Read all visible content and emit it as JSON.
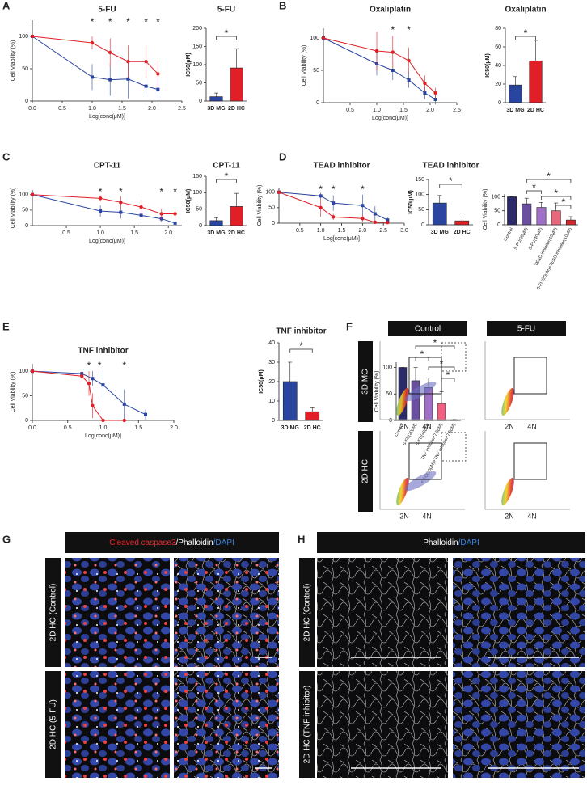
{
  "panel_labels": [
    "A",
    "B",
    "C",
    "D",
    "E",
    "F",
    "G",
    "H"
  ],
  "chart_data": [
    {
      "type": "line",
      "title": "5-FU",
      "xlabel": "Log[conc(μM)]",
      "ylabel": "Cell Viability (%)",
      "xlim": [
        0,
        2.5
      ],
      "ylim": [
        0,
        125
      ],
      "xticks": [
        {
          "value": 0,
          "label": "0.0"
        },
        0.5,
        {
          "value": 1,
          "label": "1.0"
        },
        1.5,
        {
          "value": 2,
          "label": "2.0"
        },
        2.5
      ],
      "yticks": [
        0,
        50,
        100
      ],
      "series": [
        {
          "color": "#2a45a0",
          "x": [
            0,
            1.0,
            1.3,
            1.6,
            1.9,
            2.1
          ],
          "values": [
            100,
            37,
            33,
            34,
            23,
            18
          ],
          "errors": [
            0,
            20,
            25,
            30,
            15,
            18
          ]
        },
        {
          "color": "#e02026",
          "x": [
            0,
            1.0,
            1.3,
            1.6,
            1.9,
            2.1
          ],
          "values": [
            100,
            90,
            75,
            61,
            61,
            42
          ],
          "errors": [
            0,
            10,
            22,
            25,
            25,
            20
          ]
        }
      ],
      "annotations": [
        {
          "text": "*",
          "x": 1.0
        },
        {
          "text": "*",
          "x": 1.3
        },
        {
          "text": "*",
          "x": 1.6
        },
        {
          "text": "*",
          "x": 1.9
        },
        {
          "text": "*",
          "x": 2.1
        }
      ]
    },
    {
      "type": "bar",
      "title": "5-FU",
      "ylabel": "IC50(μM)",
      "categories": [
        "3D MG",
        "2D HC"
      ],
      "values": [
        12,
        91
      ],
      "errors": [
        10,
        53
      ],
      "colors": [
        "#2a45a0",
        "#e02026"
      ],
      "ylim": [
        0,
        200
      ],
      "yticks": [
        0,
        50,
        100,
        150,
        200
      ],
      "annotations": [
        "*"
      ]
    },
    {
      "type": "line",
      "title": "Oxaliplatin",
      "xlabel": "Log[conc(μM)]",
      "ylabel": "Cell Viability (%)",
      "xlim": [
        0,
        2.5
      ],
      "ylim": [
        0,
        115
      ],
      "xticks": [
        0.5,
        {
          "value": 1,
          "label": "1.0"
        },
        1.5,
        {
          "value": 2,
          "label": "2.0"
        },
        2.5
      ],
      "yticks": [
        0,
        50,
        100
      ],
      "series": [
        {
          "color": "#2a45a0",
          "x": [
            0,
            1.0,
            1.3,
            1.6,
            1.9,
            2.1
          ],
          "values": [
            100,
            60,
            50,
            35,
            15,
            5
          ],
          "errors": [
            0,
            18,
            15,
            12,
            10,
            8
          ]
        },
        {
          "color": "#e02026",
          "x": [
            0,
            1.0,
            1.3,
            1.6,
            1.9,
            2.1
          ],
          "values": [
            100,
            80,
            78,
            65,
            30,
            15
          ],
          "errors": [
            0,
            30,
            25,
            20,
            12,
            8
          ]
        }
      ],
      "annotations": [
        {
          "text": "*",
          "x": 1.3
        },
        {
          "text": "*",
          "x": 1.6
        }
      ]
    },
    {
      "type": "bar",
      "title": "Oxaliplatin",
      "ylabel": "IC50(μM)",
      "categories": [
        "3D MG",
        "2D HC"
      ],
      "values": [
        19,
        45
      ],
      "errors": [
        9,
        22
      ],
      "colors": [
        "#2a45a0",
        "#e02026"
      ],
      "ylim": [
        0,
        80
      ],
      "yticks": [
        0,
        20,
        40,
        60,
        80
      ],
      "annotations": [
        "*"
      ]
    },
    {
      "type": "line",
      "title": "CPT-11",
      "xlabel": "Log[conc(μM)]",
      "ylabel": "Cell Viability (%)",
      "xlim": [
        0,
        2.2
      ],
      "ylim": [
        0,
        115
      ],
      "xticks": [
        0.5,
        {
          "value": 1,
          "label": "1.0"
        },
        1.5,
        {
          "value": 2,
          "label": "2.0"
        }
      ],
      "yticks": [
        0,
        50,
        100
      ],
      "series": [
        {
          "color": "#2a45a0",
          "x": [
            0,
            1.0,
            1.3,
            1.6,
            1.9,
            2.1
          ],
          "values": [
            100,
            47,
            43,
            33,
            22,
            8
          ],
          "errors": [
            0,
            18,
            20,
            18,
            10,
            5
          ]
        },
        {
          "color": "#e02026",
          "x": [
            0,
            1.0,
            1.3,
            1.6,
            1.9,
            2.1
          ],
          "values": [
            100,
            88,
            75,
            60,
            38,
            38
          ],
          "errors": [
            0,
            10,
            20,
            22,
            18,
            15
          ]
        }
      ],
      "annotations": [
        {
          "text": "*",
          "x": 1.0
        },
        {
          "text": "*",
          "x": 1.3
        },
        {
          "text": "*",
          "x": 1.9
        },
        {
          "text": "*",
          "x": 2.1
        }
      ]
    },
    {
      "type": "bar",
      "title": "CPT-11",
      "ylabel": "IC50(μM)",
      "categories": [
        "3D MG",
        "2D HC"
      ],
      "values": [
        15,
        58
      ],
      "errors": [
        9,
        40
      ],
      "colors": [
        "#2a45a0",
        "#e02026"
      ],
      "ylim": [
        0,
        150
      ],
      "yticks": [
        0,
        50,
        100,
        150
      ],
      "annotations": [
        "*"
      ]
    },
    {
      "type": "line",
      "title": "TEAD inhibitor",
      "xlabel": "Log[conc(μM)]",
      "ylabel": "Cell Viability (%)",
      "xlim": [
        0,
        3.0
      ],
      "ylim": [
        0,
        115
      ],
      "xticks": [
        0.5,
        {
          "value": 1,
          "label": "1.0"
        },
        1.5,
        {
          "value": 2,
          "label": "2.0"
        },
        2.5,
        {
          "value": 3,
          "label": "3.0"
        }
      ],
      "yticks": [
        0,
        50,
        100
      ],
      "series": [
        {
          "color": "#2a45a0",
          "x": [
            0,
            1.0,
            1.3,
            2.0,
            2.3,
            2.6
          ],
          "values": [
            100,
            88,
            65,
            57,
            30,
            10
          ],
          "errors": [
            0,
            10,
            25,
            35,
            25,
            8
          ]
        },
        {
          "color": "#e02026",
          "x": [
            0,
            1.0,
            1.3,
            2.0,
            2.3,
            2.6
          ],
          "values": [
            100,
            50,
            20,
            15,
            3,
            2
          ],
          "errors": [
            0,
            30,
            10,
            10,
            3,
            2
          ]
        }
      ],
      "annotations": [
        {
          "text": "*",
          "x": 1.0
        },
        {
          "text": "*",
          "x": 1.3
        },
        {
          "text": "*",
          "x": 2.0
        }
      ]
    },
    {
      "type": "bar",
      "title": "TEAD inhibitor",
      "ylabel": "IC50(μM)",
      "categories": [
        "3D MG",
        "2D HC"
      ],
      "values": [
        72,
        13
      ],
      "errors": [
        25,
        13
      ],
      "colors": [
        "#2a45a0",
        "#e02026"
      ],
      "ylim": [
        0,
        150
      ],
      "yticks": [
        0,
        50,
        100,
        150
      ],
      "annotations": [
        "*"
      ]
    },
    {
      "type": "bar",
      "ylabel": "Cell Viability (%)",
      "categories": [
        "Control",
        "5-FU(20μM)",
        "5-FU(40μM)",
        "TEAD inhibitor(10μM)",
        "5-FU(20μM)+TEAD inhibitor(10μM)"
      ],
      "values": [
        100,
        75,
        62,
        50,
        17
      ],
      "errors": [
        0,
        20,
        18,
        28,
        12
      ],
      "colors": [
        "#2b2a6b",
        "#6a4fa0",
        "#a070c8",
        "#e8677d",
        "#d8282f"
      ],
      "ylim": [
        0,
        110
      ],
      "yticks": [
        0,
        50,
        100
      ],
      "annotations": [
        "*",
        "*",
        "*",
        "*"
      ]
    },
    {
      "type": "line",
      "title": "TNF inhibitor",
      "xlabel": "Log[conc(μM)]",
      "ylabel": "Cell Viability (%)",
      "xlim": [
        0,
        2.0
      ],
      "ylim": [
        0,
        115
      ],
      "xticks": [
        {
          "value": 0,
          "label": "0.0"
        },
        0.5,
        {
          "value": 1,
          "label": "1.0"
        },
        1.5,
        {
          "value": 2,
          "label": "2.0"
        }
      ],
      "yticks": [
        0,
        50,
        100
      ],
      "series": [
        {
          "color": "#2a45a0",
          "x": [
            0,
            0.7,
            0.85,
            1.0,
            1.3,
            1.6
          ],
          "values": [
            100,
            95,
            85,
            72,
            33,
            12
          ],
          "errors": [
            0,
            5,
            15,
            30,
            30,
            10
          ]
        },
        {
          "color": "#e02026",
          "x": [
            0,
            0.7,
            0.8,
            0.85,
            1.0,
            1.3
          ],
          "values": [
            100,
            90,
            75,
            30,
            0,
            0
          ],
          "errors": [
            0,
            10,
            25,
            25,
            0,
            0
          ]
        }
      ],
      "annotations": [
        {
          "text": "*",
          "x": 0.8
        },
        {
          "text": "*",
          "x": 0.95
        },
        {
          "text": "*",
          "x": 1.3
        }
      ]
    },
    {
      "type": "bar",
      "title": "TNF inhibitor",
      "ylabel": "IC50(μM)",
      "categories": [
        "3D MG",
        "2D HC"
      ],
      "values": [
        20,
        4.5
      ],
      "errors": [
        10,
        2
      ],
      "colors": [
        "#2a45a0",
        "#e02026"
      ],
      "ylim": [
        0,
        40
      ],
      "yticks": [
        0,
        10,
        20,
        30,
        40
      ],
      "annotations": [
        "*"
      ]
    },
    {
      "type": "bar",
      "ylabel": "Cell Viability (%)",
      "categories": [
        "Control",
        "5-FU(20μM)",
        "5-FU(40μM)",
        "TNF inhibitor(7.5μM)",
        "5-FU(20μM)+TNF inhibitor(7.5μM)"
      ],
      "values": [
        100,
        75,
        62,
        32,
        1
      ],
      "errors": [
        0,
        25,
        18,
        22,
        1
      ],
      "colors": [
        "#2b2a6b",
        "#6a4fa0",
        "#a070c8",
        "#f06080",
        "#d8282f"
      ],
      "ylim": [
        0,
        110
      ],
      "yticks": [
        0,
        50,
        100
      ],
      "annotations": [
        "*",
        "*",
        "*",
        "*"
      ]
    }
  ],
  "panel_f": {
    "columns": [
      "Control",
      "5-FU"
    ],
    "rows": [
      "3D MG",
      "2D HC"
    ],
    "x_labels": [
      "2N",
      "4N"
    ]
  },
  "panel_g": {
    "header": [
      {
        "text": "Cleaved caspase3",
        "color": "#e8282e"
      },
      {
        "text": "/Phalloidin",
        "color": "#ffffff"
      },
      {
        "text": "/DAPI",
        "color": "#3a82e0"
      }
    ],
    "rows": [
      "2D HC (Control)",
      "2D HC (5-FU)"
    ]
  },
  "panel_h": {
    "header": [
      {
        "text": "Phalloidin",
        "color": "#ffffff"
      },
      {
        "text": "/DAPI",
        "color": "#3a82e0"
      }
    ],
    "rows": [
      "2D HC (Control)",
      "2D HC (TNF inhibitor)"
    ]
  }
}
